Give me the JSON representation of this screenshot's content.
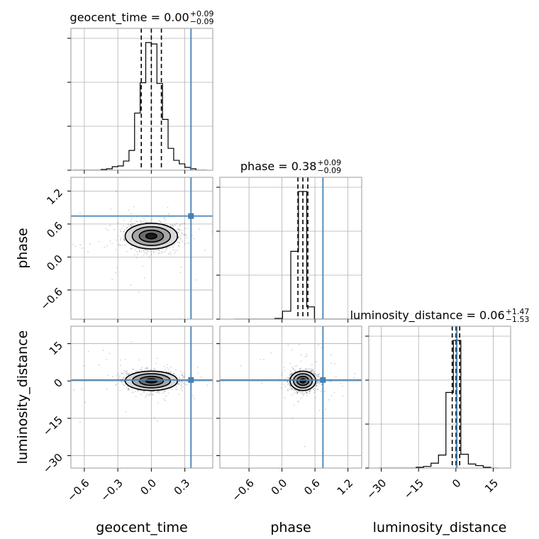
{
  "chart_data": {
    "type": "corner",
    "parameters": [
      "geocent_time",
      "phase",
      "luminosity_distance"
    ],
    "axis_labels": {
      "geocent_time": "geocent_time",
      "phase": "phase",
      "luminosity_distance": "luminosity_distance"
    },
    "ranges": {
      "geocent_time": [
        -0.72,
        0.55
      ],
      "phase": [
        -1.13,
        1.45
      ],
      "luminosity_distance": [
        -35,
        22
      ]
    },
    "ticks": {
      "geocent_time": [
        -0.6,
        -0.3,
        0.0,
        0.3
      ],
      "phase": [
        -0.6,
        0.0,
        0.6,
        1.2
      ],
      "luminosity_distance": [
        -30,
        -15,
        0,
        15
      ]
    },
    "tick_labels": {
      "geocent_time": [
        "−0.6",
        "−0.3",
        "0.0",
        "0.3"
      ],
      "phase": [
        "−0.6",
        "0.0",
        "0.6",
        "1.2"
      ],
      "luminosity_distance": [
        "−30",
        "−15",
        "0",
        "15"
      ]
    },
    "truths": {
      "geocent_time": 0.355,
      "phase": 0.745,
      "luminosity_distance": 0.4
    },
    "truth_color": "#4682b4",
    "titles": [
      {
        "param": "geocent_time",
        "text": "geocent_time = 0.00",
        "upper": "+0.09",
        "lower": "−0.09"
      },
      {
        "param": "phase",
        "text": "phase = 0.38",
        "upper": "+0.09",
        "lower": "−0.09"
      },
      {
        "param": "luminosity_distance",
        "text": "luminosity_distance = 0.06",
        "upper": "+1.47",
        "lower": "−1.53"
      }
    ],
    "quantiles": {
      "geocent_time": [
        -0.09,
        0.0,
        0.09
      ],
      "phase": [
        0.29,
        0.38,
        0.47
      ],
      "luminosity_distance": [
        -1.47,
        0.06,
        1.53
      ]
    },
    "histograms": {
      "geocent_time": {
        "edges": [
          -0.7,
          -0.65,
          -0.6,
          -0.55,
          -0.5,
          -0.45,
          -0.4,
          -0.35,
          -0.3,
          -0.25,
          -0.2,
          -0.15,
          -0.1,
          -0.05,
          0.0,
          0.05,
          0.1,
          0.15,
          0.2,
          0.25,
          0.3,
          0.35,
          0.4,
          0.45,
          0.5
        ],
        "counts": [
          0,
          0,
          0,
          0,
          0,
          1,
          2,
          5,
          6,
          13,
          28,
          81,
          124,
          181,
          179,
          123,
          72,
          31,
          14,
          9,
          4,
          2,
          0,
          0
        ]
      },
      "phase": {
        "edges": [
          -0.86,
          -0.71,
          -0.57,
          -0.42,
          -0.28,
          -0.13,
          0.01,
          0.16,
          0.3,
          0.45,
          0.59,
          0.74,
          0.88,
          1.03,
          1.17,
          1.32
        ],
        "counts": [
          0,
          0,
          0,
          0,
          0,
          1,
          11,
          94,
          177,
          17,
          0,
          0,
          0,
          0,
          0
        ]
      },
      "luminosity_distance": {
        "edges": [
          -31,
          -28,
          -25,
          -22,
          -19,
          -16,
          -13,
          -10,
          -7,
          -4,
          -1,
          2,
          5,
          8,
          11,
          14,
          17
        ],
        "counts": [
          0,
          0,
          0,
          0,
          0,
          1,
          2,
          6,
          16,
          93,
          157,
          17,
          5,
          3,
          1,
          0
        ]
      }
    },
    "grid": true,
    "series_color": "#000000"
  }
}
